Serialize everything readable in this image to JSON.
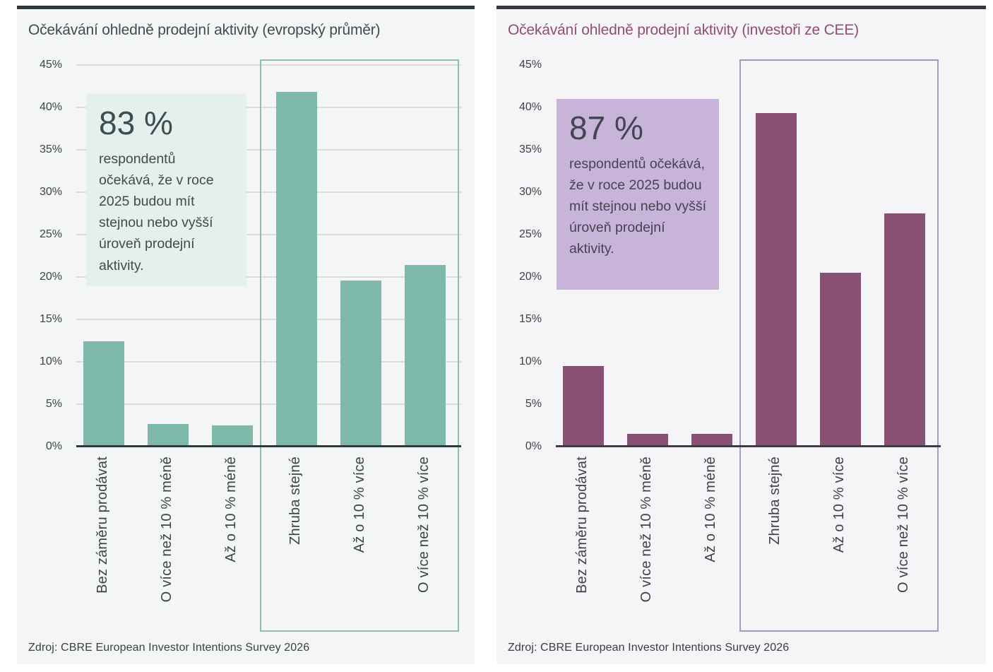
{
  "chart_data": [
    {
      "type": "bar",
      "title": "Očekávání ohledně prodejní aktivity (evropský průměr)",
      "categories": [
        "Bez záměru prodávat",
        "O více než 10 % méně",
        "Až o 10 % méně",
        "Zhruba stejné",
        "Až o 10 % více",
        "O více než 10 % více"
      ],
      "values": [
        12.4,
        2.7,
        2.5,
        41.8,
        19.6,
        21.4
      ],
      "ylim": [
        0,
        45
      ],
      "ytick_step": 5,
      "ytick_suffix": "%",
      "grid": true,
      "legend": "none",
      "highlight_box": {
        "from_category_index": 3,
        "to_category_index": 5,
        "note": "outlined group = same or higher activity"
      },
      "callout": {
        "headline": "83 %",
        "body": "respondentů očekává, že v roce 2025 budou mít stejnou nebo vyšší úroveň prodejní aktivity."
      },
      "source": "Zdroj: CBRE European Investor Intentions Survey 2026",
      "colors": {
        "bar": "#7eb9ab",
        "grid": "#d8dcdb",
        "axis": "#2e3a3d",
        "axis_labels": "#3b4549",
        "title": "#3e4d52",
        "top_border": "#2c383b",
        "highlight_border": "#8dbeb0",
        "callout_bg": "#e4f0ec",
        "callout_headline": "#3e4d52",
        "callout_text": "#434a4d",
        "source": "#3a4146"
      }
    },
    {
      "type": "bar",
      "title": "Očekávání ohledně prodejní aktivity (investoři ze CEE)",
      "categories": [
        "Bez záměru prodávat",
        "O více než 10 % méně",
        "Až o 10 % méně",
        "Zhruba stejné",
        "Až o 10 % více",
        "O více než 10 % více"
      ],
      "values": [
        9.5,
        1.5,
        1.5,
        39.3,
        20.5,
        27.5
      ],
      "ylim": [
        0,
        45
      ],
      "ytick_step": 5,
      "ytick_suffix": "%",
      "grid": false,
      "legend": "none",
      "highlight_box": {
        "from_category_index": 3,
        "to_category_index": 5,
        "note": "outlined group = same or higher activity"
      },
      "callout": {
        "headline": "87 %",
        "body": "respondentů očekává, že v roce 2025 budou mít stejnou nebo vyšší úroveň prodejní aktivity."
      },
      "source": "Zdroj: CBRE European Investor Intentions Survey 2026",
      "colors": {
        "bar": "#885173",
        "grid": "#dddbdf",
        "axis": "#403b45",
        "axis_labels": "#41414a",
        "title": "#8e4f73",
        "top_border": "#3b3540",
        "highlight_border": "#ab95c1",
        "callout_bg": "#c7b4d8",
        "callout_headline": "#424552",
        "callout_text": "#474253",
        "source": "#3f3a44"
      }
    }
  ]
}
